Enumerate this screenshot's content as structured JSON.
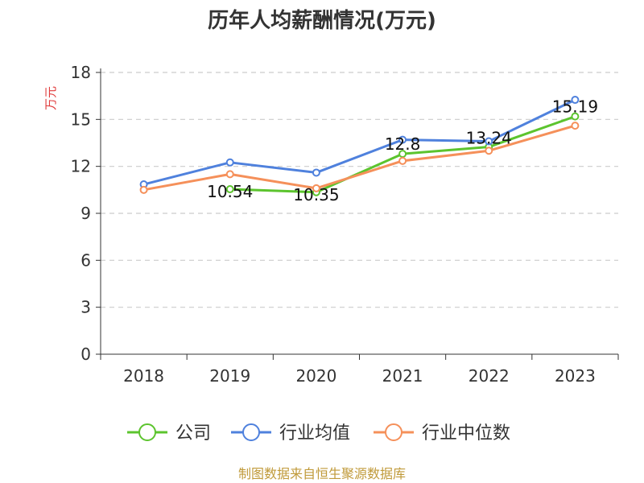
{
  "chart_data": {
    "type": "line",
    "title": "历年人均薪酬情况(万元)",
    "ylabel": "万元",
    "xlabel": "",
    "categories": [
      "2018",
      "2019",
      "2020",
      "2021",
      "2022",
      "2023"
    ],
    "ylim": [
      0,
      18
    ],
    "yticks": [
      0,
      3,
      6,
      9,
      12,
      15,
      18
    ],
    "grid": true,
    "legend_position": "bottom",
    "series": [
      {
        "name": "公司",
        "color": "#5cc42e",
        "values": [
          null,
          10.54,
          10.35,
          12.8,
          13.24,
          15.19
        ],
        "labels": [
          "",
          "10.54",
          "10.35",
          "12.8",
          "13.24",
          "15.19"
        ]
      },
      {
        "name": "行业均值",
        "color": "#4f81dd",
        "values": [
          10.85,
          12.25,
          11.6,
          13.7,
          13.6,
          16.25
        ]
      },
      {
        "name": "行业中位数",
        "color": "#f5905a",
        "values": [
          10.5,
          11.5,
          10.6,
          12.35,
          13.0,
          14.6
        ]
      }
    ]
  },
  "source": "制图数据来自恒生聚源数据库"
}
